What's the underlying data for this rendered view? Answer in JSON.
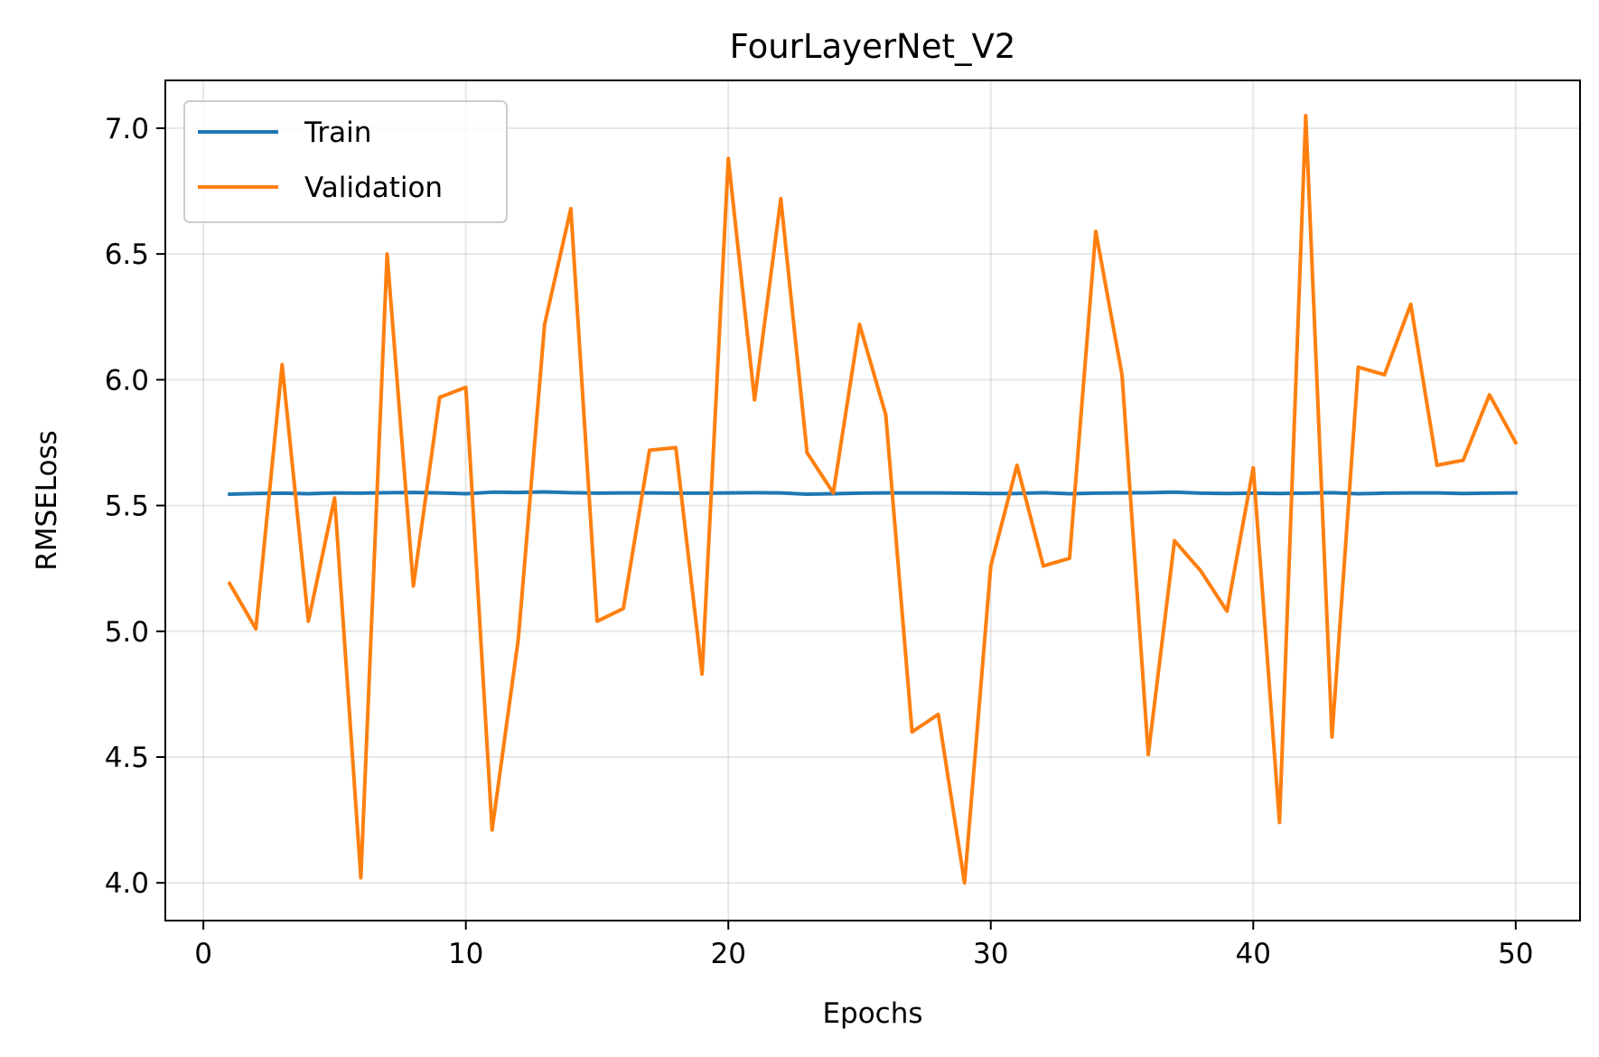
{
  "chart_data": {
    "type": "line",
    "title": "FourLayerNet_V2",
    "xlabel": "Epochs",
    "ylabel": "RMSELoss",
    "xlim": [
      -1.45,
      52.45
    ],
    "ylim": [
      3.85,
      7.19
    ],
    "xticks": [
      "0",
      "10",
      "20",
      "30",
      "40",
      "50"
    ],
    "yticks": [
      "4.0",
      "4.5",
      "5.0",
      "5.5",
      "6.0",
      "6.5",
      "7.0"
    ],
    "grid": true,
    "legend_position": "top-left",
    "x": [
      1,
      2,
      3,
      4,
      5,
      6,
      7,
      8,
      9,
      10,
      11,
      12,
      13,
      14,
      15,
      16,
      17,
      18,
      19,
      20,
      21,
      22,
      23,
      24,
      25,
      26,
      27,
      28,
      29,
      30,
      31,
      32,
      33,
      34,
      35,
      36,
      37,
      38,
      39,
      40,
      41,
      42,
      43,
      44,
      45,
      46,
      47,
      48,
      49,
      50
    ],
    "series": [
      {
        "name": "Train",
        "color": "#1f77b4",
        "values": [
          5.545,
          5.548,
          5.549,
          5.547,
          5.55,
          5.549,
          5.551,
          5.552,
          5.55,
          5.547,
          5.553,
          5.552,
          5.554,
          5.551,
          5.549,
          5.55,
          5.55,
          5.549,
          5.549,
          5.55,
          5.551,
          5.55,
          5.545,
          5.547,
          5.549,
          5.55,
          5.55,
          5.55,
          5.549,
          5.548,
          5.548,
          5.551,
          5.547,
          5.549,
          5.55,
          5.551,
          5.553,
          5.549,
          5.548,
          5.549,
          5.548,
          5.549,
          5.551,
          5.547,
          5.549,
          5.55,
          5.55,
          5.548,
          5.549,
          5.55
        ]
      },
      {
        "name": "Validation",
        "color": "#ff7f0e",
        "values": [
          5.19,
          5.01,
          6.06,
          5.04,
          5.53,
          4.02,
          6.5,
          5.18,
          5.93,
          5.97,
          4.21,
          4.97,
          6.22,
          6.68,
          5.04,
          5.09,
          5.72,
          5.73,
          4.83,
          6.88,
          5.92,
          6.72,
          5.71,
          5.55,
          6.22,
          5.86,
          4.6,
          4.67,
          4.0,
          5.26,
          5.66,
          5.26,
          5.29,
          6.59,
          6.02,
          4.51,
          5.36,
          5.24,
          5.08,
          5.65,
          4.24,
          7.05,
          4.58,
          6.05,
          6.02,
          6.3,
          5.66,
          5.68,
          5.94,
          5.75
        ]
      }
    ]
  }
}
